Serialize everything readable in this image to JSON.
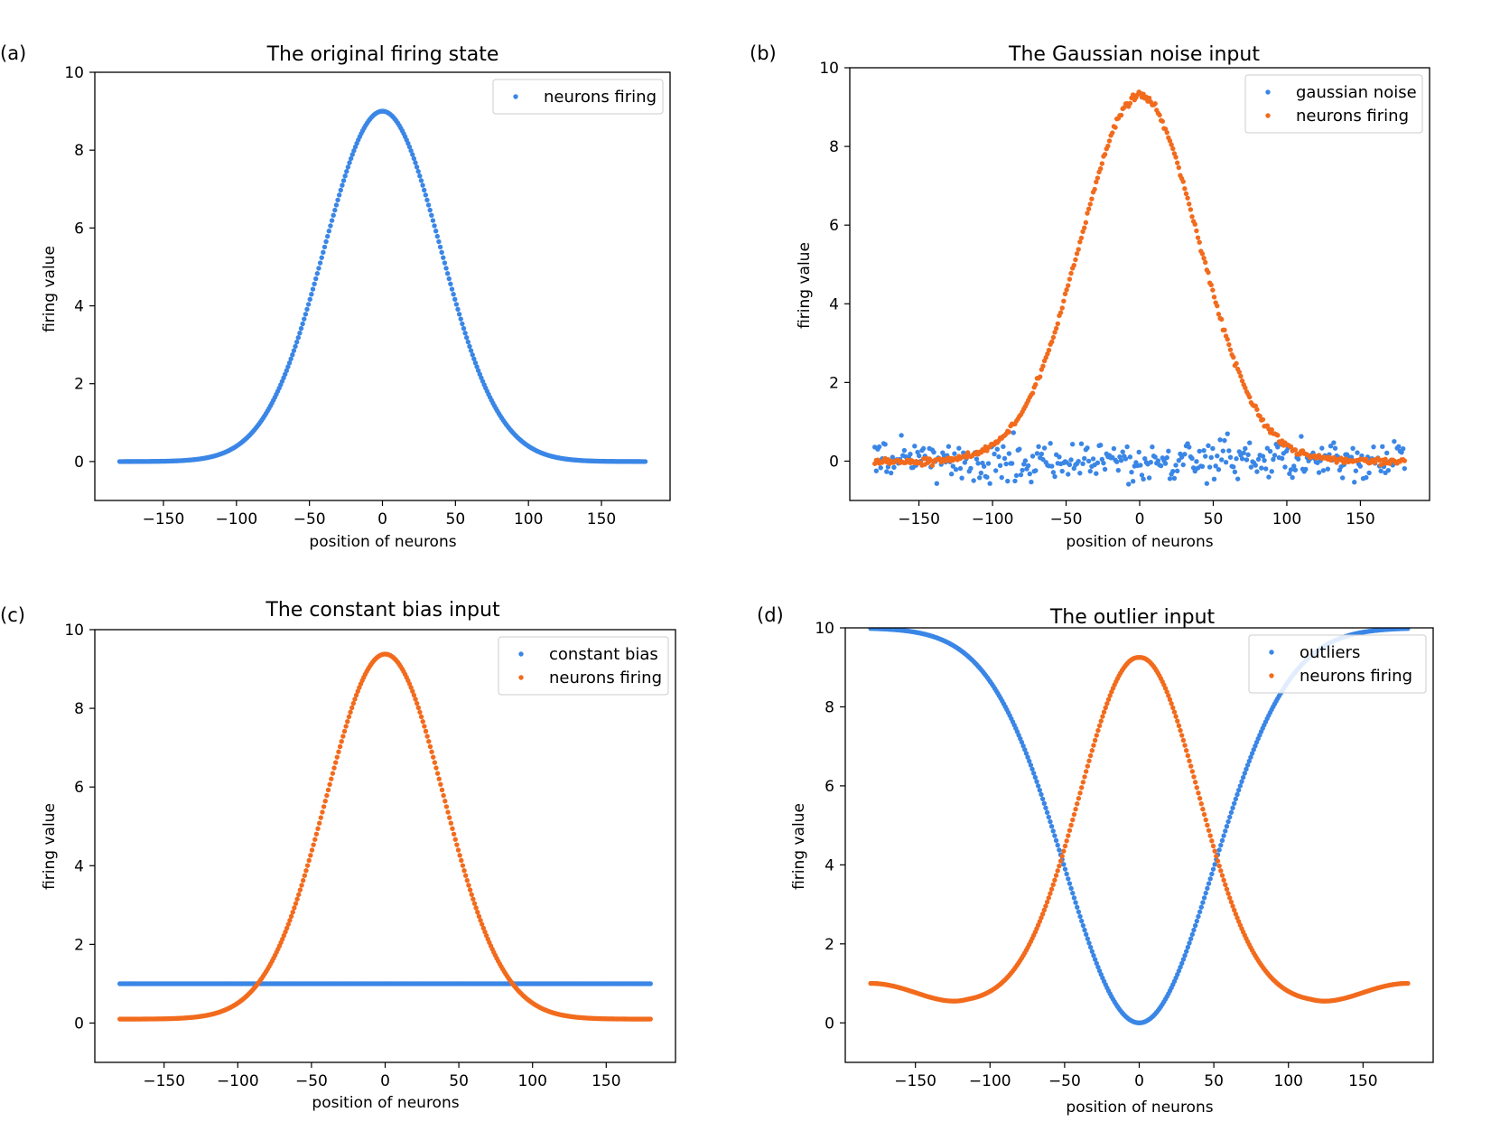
{
  "figure": {
    "panels": [
      {
        "label": "(a)",
        "title": "The original firing state",
        "xlabel": "position of neurons",
        "ylabel": "firing value"
      },
      {
        "label": "(b)",
        "title": "The Gaussian noise input",
        "xlabel": "position of neurons",
        "ylabel": "firing value"
      },
      {
        "label": "(c)",
        "title": "The constant bias input",
        "xlabel": "position of neurons",
        "ylabel": "firing value"
      },
      {
        "label": "(d)",
        "title": "The outlier input",
        "xlabel": "position of neurons",
        "ylabel": "firing value"
      }
    ]
  },
  "colors": {
    "blue": "#3a86e6",
    "orange": "#f26b1d",
    "axis": "#000000"
  },
  "chart_data": [
    {
      "type": "scatter",
      "title": "The original firing state",
      "xlabel": "position of neurons",
      "ylabel": "firing value",
      "xlim": [
        -197,
        197
      ],
      "ylim": [
        -1,
        10
      ],
      "xticks": [
        -150,
        -100,
        -50,
        0,
        50,
        100,
        150
      ],
      "yticks": [
        0,
        2,
        4,
        6,
        8,
        10
      ],
      "xtick_labels": [
        "−150",
        "−100",
        "−50",
        "0",
        "50",
        "100",
        "150"
      ],
      "ytick_labels": [
        "0",
        "2",
        "4",
        "6",
        "8",
        "10"
      ],
      "legend_position": "top-right",
      "series": [
        {
          "name": "neurons firing",
          "color": "#3a86e6",
          "model": "gaussian",
          "x_range": [
            -180,
            180
          ],
          "n_points": 360,
          "amplitude": 9.0,
          "sigma": 40,
          "offset": 0
        }
      ]
    },
    {
      "type": "scatter",
      "title": "The Gaussian noise input",
      "xlabel": "position of neurons",
      "ylabel": "firing value",
      "xlim": [
        -197,
        197
      ],
      "ylim": [
        -1,
        10
      ],
      "xticks": [
        -150,
        -100,
        -50,
        0,
        50,
        100,
        150
      ],
      "yticks": [
        0,
        2,
        4,
        6,
        8,
        10
      ],
      "xtick_labels": [
        "−150",
        "−100",
        "−50",
        "0",
        "50",
        "100",
        "150"
      ],
      "ytick_labels": [
        "0",
        "2",
        "4",
        "6",
        "8",
        "10"
      ],
      "legend_position": "top-right",
      "series": [
        {
          "name": "gaussian noise",
          "color": "#3a86e6",
          "model": "noise",
          "x_range": [
            -180,
            180
          ],
          "n_points": 360,
          "mean": 0,
          "std": 0.25,
          "seed": 7
        },
        {
          "name": "neurons firing",
          "color": "#f26b1d",
          "model": "gaussian",
          "x_range": [
            -180,
            180
          ],
          "n_points": 360,
          "amplitude": 9.3,
          "sigma": 40,
          "offset": 0,
          "jitter": 0.04
        }
      ]
    },
    {
      "type": "scatter",
      "title": "The constant bias input",
      "xlabel": "position of neurons",
      "ylabel": "firing value",
      "xlim": [
        -197,
        197
      ],
      "ylim": [
        -1,
        10
      ],
      "xticks": [
        -150,
        -100,
        -50,
        0,
        50,
        100,
        150
      ],
      "yticks": [
        0,
        2,
        4,
        6,
        8,
        10
      ],
      "xtick_labels": [
        "−150",
        "−100",
        "−50",
        "0",
        "50",
        "100",
        "150"
      ],
      "ytick_labels": [
        "0",
        "2",
        "4",
        "6",
        "8",
        "10"
      ],
      "legend_position": "top-right",
      "series": [
        {
          "name": "constant bias",
          "color": "#3a86e6",
          "model": "constant",
          "x_range": [
            -180,
            180
          ],
          "n_points": 360,
          "value": 1.0
        },
        {
          "name": "neurons firing",
          "color": "#f26b1d",
          "model": "gaussian",
          "x_range": [
            -180,
            180
          ],
          "n_points": 360,
          "amplitude": 9.28,
          "sigma": 40,
          "offset": 0.1
        }
      ]
    },
    {
      "type": "scatter",
      "title": "The outlier input",
      "xlabel": "position of neurons",
      "ylabel": "firing value",
      "xlim": [
        -197,
        197
      ],
      "ylim": [
        -1,
        10
      ],
      "xticks": [
        -150,
        -100,
        -50,
        0,
        50,
        100,
        150
      ],
      "yticks": [
        0,
        2,
        4,
        6,
        8,
        10
      ],
      "xtick_labels": [
        "−150",
        "−100",
        "−50",
        "0",
        "50",
        "100",
        "150"
      ],
      "ytick_labels": [
        "0",
        "2",
        "4",
        "6",
        "8",
        "10"
      ],
      "legend_position": "top-right",
      "series": [
        {
          "name": "outliers",
          "color": "#3a86e6",
          "model": "inverted-gaussian",
          "x_range": [
            -180,
            180
          ],
          "n_points": 360,
          "amplitude": 10,
          "sigma": 50,
          "clip_max": 10
        },
        {
          "name": "neurons firing",
          "color": "#f26b1d",
          "model": "dip-bump",
          "x_range": [
            -180,
            180
          ],
          "n_points": 360,
          "peak": 9.25,
          "sigma": 40,
          "tail": 1.0,
          "dip": 0.45,
          "dip_at": 115
        }
      ]
    }
  ]
}
